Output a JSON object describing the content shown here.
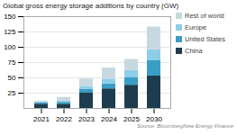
{
  "chart_data": {
    "type": "bar",
    "stacked": true,
    "title": "Global gross energy storage additions by country (GW)",
    "annotations": [
      "Source: BloombergNew Energy Finance"
    ],
    "categories": [
      "2021",
      "2022",
      "2023",
      "2024",
      "2025",
      "2030"
    ],
    "series": [
      {
        "name": "China",
        "color": "#1d3d4f",
        "values": [
          7,
          7,
          25,
          32,
          38,
          53
        ]
      },
      {
        "name": "United States",
        "color": "#3a9dc5",
        "values": [
          2,
          3,
          6,
          8,
          12,
          25
        ]
      },
      {
        "name": "Europe",
        "color": "#8dcee8",
        "values": [
          1,
          2,
          5,
          8,
          12,
          18
        ]
      },
      {
        "name": "Rest of world",
        "color": "#c8d8e0",
        "values": [
          2,
          6,
          12,
          18,
          18,
          37
        ]
      }
    ],
    "ylim": [
      0,
      150
    ],
    "yticks": [
      25,
      50,
      75,
      100,
      125,
      150
    ],
    "grid": true,
    "legend": "upper right"
  }
}
